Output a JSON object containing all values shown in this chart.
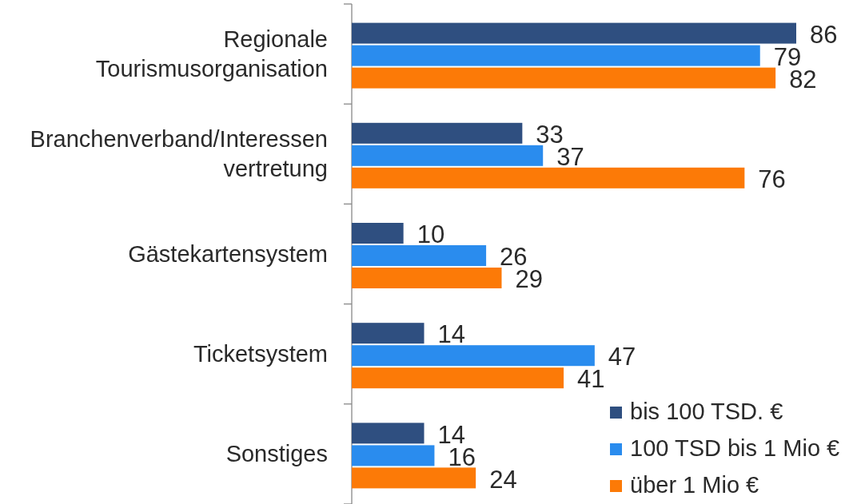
{
  "chart_data": {
    "type": "bar",
    "orientation": "horizontal",
    "categories": [
      "Regionale Tourismusorganisation",
      "Branchenverband/Interessen vertretung",
      "Gästekartensystem",
      "Ticketsystem",
      "Sonstiges"
    ],
    "series": [
      {
        "name": "bis 100 TSD. €",
        "color": "#2f4f80",
        "values": [
          86,
          33,
          10,
          14,
          14
        ]
      },
      {
        "name": "100 TSD bis 1 Mio €",
        "color": "#2a8cee",
        "values": [
          79,
          37,
          26,
          47,
          16
        ]
      },
      {
        "name": "über 1 Mio €",
        "color": "#fc7a07",
        "values": [
          82,
          76,
          29,
          41,
          24
        ]
      }
    ],
    "data_labels": true,
    "legend": "bottom right"
  }
}
